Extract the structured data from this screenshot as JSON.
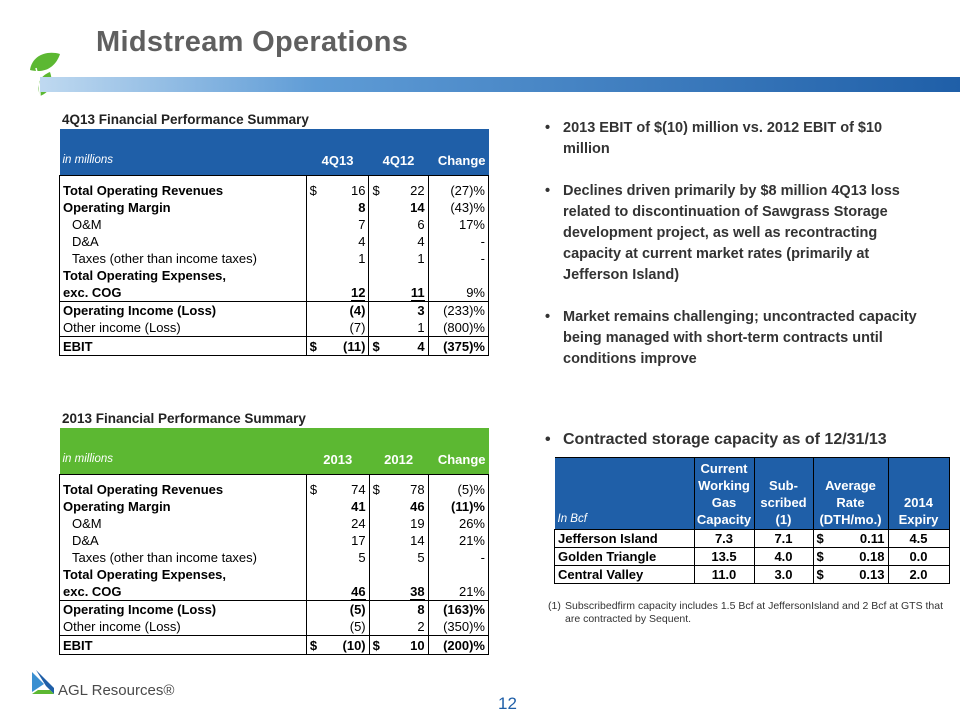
{
  "slide": {
    "title": "Midstream Operations",
    "page_number": "12"
  },
  "logo": {
    "text": "AGL Resources®"
  },
  "table_4q": {
    "title": "4Q13 Financial Performance Summary",
    "unit": "in millions",
    "headers": [
      "4Q13",
      "4Q12",
      "Change"
    ],
    "rows": {
      "rev": {
        "label": "Total Operating Revenues",
        "d1": "$",
        "v1": "16",
        "d2": "$",
        "v2": "22",
        "ch": "(27)%"
      },
      "om": {
        "label": "Operating Margin",
        "v1": "8",
        "v2": "14",
        "ch": "(43)%"
      },
      "oandm": {
        "label": "O&M",
        "v1": "7",
        "v2": "6",
        "ch": "17%"
      },
      "da": {
        "label": "D&A",
        "v1": "4",
        "v2": "4",
        "ch": "-"
      },
      "tax": {
        "label": "Taxes (other than income taxes)",
        "v1": "1",
        "v2": "1",
        "ch": "-"
      },
      "toe": {
        "label1": "Total Operating Expenses,",
        "label2": "exc. COG",
        "v1": "12",
        "v2": "11",
        "ch": "9%"
      },
      "oi": {
        "label": "Operating Income (Loss)",
        "v1": "(4)",
        "v2": "3",
        "ch": "(233)%"
      },
      "oth": {
        "label": "Other income (Loss)",
        "v1": "(7)",
        "v2": "1",
        "ch": "(800)%"
      },
      "ebit": {
        "label": "EBIT",
        "d1": "$",
        "v1": "(11)",
        "d2": "$",
        "v2": "4",
        "ch": "(375)%"
      }
    }
  },
  "table_year": {
    "title": "2013 Financial Performance Summary",
    "unit": "in millions",
    "headers": [
      "2013",
      "2012",
      "Change"
    ],
    "rows": {
      "rev": {
        "label": "Total Operating Revenues",
        "d1": "$",
        "v1": "74",
        "d2": "$",
        "v2": "78",
        "ch": "(5)%"
      },
      "om": {
        "label": "Operating Margin",
        "v1": "41",
        "v2": "46",
        "ch": "(11)%"
      },
      "oandm": {
        "label": "O&M",
        "v1": "24",
        "v2": "19",
        "ch": "26%"
      },
      "da": {
        "label": "D&A",
        "v1": "17",
        "v2": "14",
        "ch": "21%"
      },
      "tax": {
        "label": "Taxes (other than income taxes)",
        "v1": "5",
        "v2": "5",
        "ch": "-"
      },
      "toe": {
        "label1": "Total Operating Expenses,",
        "label2": "exc. COG",
        "v1": "46",
        "v2": "38",
        "ch": "21%"
      },
      "oi": {
        "label": "Operating Income (Loss)",
        "v1": "(5)",
        "v2": "8",
        "ch": "(163)%"
      },
      "oth": {
        "label": "Other income (Loss)",
        "v1": "(5)",
        "v2": "2",
        "ch": "(350)%"
      },
      "ebit": {
        "label": "EBIT",
        "d1": "$",
        "v1": "(10)",
        "d2": "$",
        "v2": "10",
        "ch": "(200)%"
      }
    }
  },
  "bullets": [
    "2013 EBIT of $(10) million vs. 2012 EBIT of $10 million",
    "Declines driven primarily by $8 million 4Q13 loss related to discontinuation  of Sawgrass Storage development  project, as well as recontracting  capacity at current market rates (primarily at Jefferson Island)",
    "Market remains challenging;  uncontracted capacity  being managed  with short-term contracts  until conditions  improve"
  ],
  "storage": {
    "heading": "Contracted storage capacity as of 12/31/13",
    "unit": "In Bcf",
    "headers": {
      "h1": [
        "Current",
        "Working",
        "Gas",
        "Capacity"
      ],
      "h2": [
        "Sub-",
        "scribed",
        "(1)"
      ],
      "h3": [
        "Average",
        "Rate",
        "(DTH/mo.)"
      ],
      "h4": "2014 Expiry"
    },
    "rows": [
      {
        "name": "Jefferson Island",
        "capacity": "7.3",
        "subscribed": "7.1",
        "rate_cur": "$",
        "rate": "0.11",
        "expiry": "4.5"
      },
      {
        "name": "Golden Triangle",
        "capacity": "13.5",
        "subscribed": "4.0",
        "rate_cur": "$",
        "rate": "0.18",
        "expiry": "0.0"
      },
      {
        "name": "Central Valley",
        "capacity": "11.0",
        "subscribed": "3.0",
        "rate_cur": "$",
        "rate": "0.13",
        "expiry": "2.0"
      }
    ],
    "footnote_marker": "(1)",
    "footnote": "Subscribedfirm capacity includes 1.5 Bcf at JeffersonIsland and 2 Bcf at GTS that are contracted by Sequent."
  },
  "colors": {
    "blue": "#1f5fa8",
    "green": "#5cb832",
    "title_gray": "#5f5f5f"
  }
}
